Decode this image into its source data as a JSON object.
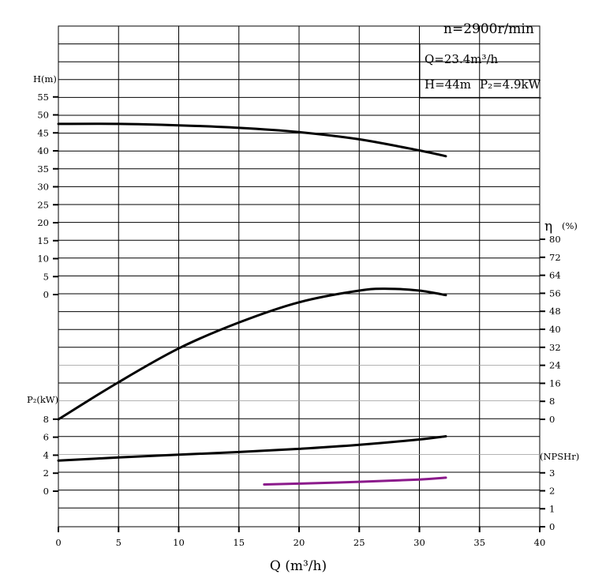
{
  "chart_data": {
    "type": "line",
    "speed_label": "n=2900r/min",
    "duty_point": {
      "q_label": "Q=23.4m³/h",
      "h_label": "H=44m",
      "p_label": "P₂=4.9kW"
    },
    "xlabel": "Q (m³/h)",
    "xlim": [
      0,
      40
    ],
    "x_ticks": [
      "0",
      "5",
      "10",
      "15",
      "20",
      "25",
      "30",
      "35",
      "40"
    ],
    "axes": {
      "head": {
        "label": "H(m)",
        "ticks": [
          "55",
          "50",
          "45",
          "40",
          "35",
          "30",
          "25",
          "20",
          "15",
          "10",
          "5",
          "0"
        ]
      },
      "efficiency": {
        "label": "η",
        "unit": "(%)",
        "ticks": [
          "80",
          "72",
          "64",
          "56",
          "48",
          "40",
          "32",
          "24",
          "16",
          "8",
          "0"
        ]
      },
      "power": {
        "label": "P₂(kW)",
        "ticks": [
          "8",
          "6",
          "4",
          "2",
          "0"
        ]
      },
      "npsh": {
        "label": "(NPSHr)",
        "ticks": [
          "3",
          "2",
          "1",
          "0"
        ]
      }
    },
    "series": [
      {
        "key": "head",
        "axis": "head",
        "color": "#000000",
        "x": [
          0,
          5,
          10,
          15,
          20,
          25,
          30,
          32.2
        ],
        "y": [
          47.5,
          47.5,
          47.1,
          46.4,
          45.2,
          43.2,
          40.1,
          38.5
        ]
      },
      {
        "key": "efficiency",
        "axis": "efficiency",
        "color": "#000000",
        "x": [
          0,
          5,
          10,
          15,
          20,
          25,
          27.5,
          30,
          32.2
        ],
        "y": [
          0,
          16.5,
          31.5,
          43,
          52,
          57.2,
          58,
          57.2,
          55.2
        ]
      },
      {
        "key": "power",
        "axis": "power",
        "color": "#000000",
        "x": [
          0,
          5,
          10,
          15,
          20,
          25,
          30,
          32.2
        ],
        "y": [
          3.4,
          3.75,
          4.05,
          4.35,
          4.7,
          5.15,
          5.75,
          6.1
        ]
      },
      {
        "key": "npsh",
        "axis": "npsh",
        "color": "#8b1a8b",
        "x": [
          17.1,
          20,
          25,
          30,
          32.2
        ],
        "y": [
          2.35,
          2.4,
          2.5,
          2.63,
          2.73
        ]
      }
    ]
  }
}
